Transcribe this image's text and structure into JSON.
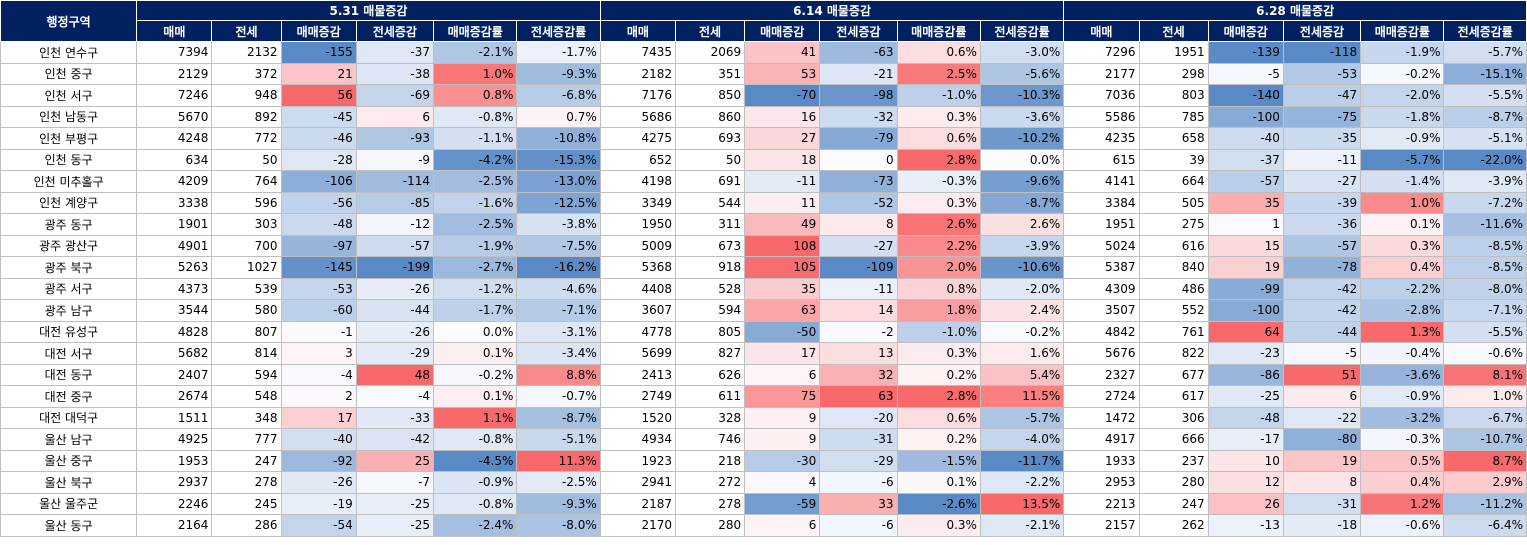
{
  "header": {
    "region_label": "행정구역",
    "groups": [
      "5.31 매물증감",
      "6.14 매물증감",
      "6.28 매물증감"
    ],
    "columns": [
      "매매",
      "전세",
      "매매증감",
      "전세증감",
      "매매증감률",
      "전세증감률"
    ]
  },
  "colors": {
    "header_bg": "#002060",
    "positive": "#f8696b",
    "negative": "#5a8ac6",
    "neutral": "#fcfcff"
  },
  "rows": [
    {
      "region": "인천 연수구",
      "g1": [
        "7394",
        "2132",
        "-155",
        "-37",
        "-2.1%",
        "-1.7%"
      ],
      "g2": [
        "7435",
        "2069",
        "41",
        "-63",
        "0.6%",
        "-3.0%"
      ],
      "g3": [
        "7296",
        "1951",
        "-139",
        "-118",
        "-1.9%",
        "-5.7%"
      ]
    },
    {
      "region": "인천 중구",
      "g1": [
        "2129",
        "372",
        "21",
        "-38",
        "1.0%",
        "-9.3%"
      ],
      "g2": [
        "2182",
        "351",
        "53",
        "-21",
        "2.5%",
        "-5.6%"
      ],
      "g3": [
        "2177",
        "298",
        "-5",
        "-53",
        "-0.2%",
        "-15.1%"
      ]
    },
    {
      "region": "인천 서구",
      "g1": [
        "7246",
        "948",
        "56",
        "-69",
        "0.8%",
        "-6.8%"
      ],
      "g2": [
        "7176",
        "850",
        "-70",
        "-98",
        "-1.0%",
        "-10.3%"
      ],
      "g3": [
        "7036",
        "803",
        "-140",
        "-47",
        "-2.0%",
        "-5.5%"
      ]
    },
    {
      "region": "인천 남동구",
      "g1": [
        "5670",
        "892",
        "-45",
        "6",
        "-0.8%",
        "0.7%"
      ],
      "g2": [
        "5686",
        "860",
        "16",
        "-32",
        "0.3%",
        "-3.6%"
      ],
      "g3": [
        "5586",
        "785",
        "-100",
        "-75",
        "-1.8%",
        "-8.7%"
      ]
    },
    {
      "region": "인천 부평구",
      "g1": [
        "4248",
        "772",
        "-46",
        "-93",
        "-1.1%",
        "-10.8%"
      ],
      "g2": [
        "4275",
        "693",
        "27",
        "-79",
        "0.6%",
        "-10.2%"
      ],
      "g3": [
        "4235",
        "658",
        "-40",
        "-35",
        "-0.9%",
        "-5.1%"
      ]
    },
    {
      "region": "인천 동구",
      "g1": [
        "634",
        "50",
        "-28",
        "-9",
        "-4.2%",
        "-15.3%"
      ],
      "g2": [
        "652",
        "50",
        "18",
        "0",
        "2.8%",
        "0.0%"
      ],
      "g3": [
        "615",
        "39",
        "-37",
        "-11",
        "-5.7%",
        "-22.0%"
      ]
    },
    {
      "region": "인천 미추홀구",
      "g1": [
        "4209",
        "764",
        "-106",
        "-114",
        "-2.5%",
        "-13.0%"
      ],
      "g2": [
        "4198",
        "691",
        "-11",
        "-73",
        "-0.3%",
        "-9.6%"
      ],
      "g3": [
        "4141",
        "664",
        "-57",
        "-27",
        "-1.4%",
        "-3.9%"
      ]
    },
    {
      "region": "인천 계양구",
      "g1": [
        "3338",
        "596",
        "-56",
        "-85",
        "-1.6%",
        "-12.5%"
      ],
      "g2": [
        "3349",
        "544",
        "11",
        "-52",
        "0.3%",
        "-8.7%"
      ],
      "g3": [
        "3384",
        "505",
        "35",
        "-39",
        "1.0%",
        "-7.2%"
      ]
    },
    {
      "region": "광주 동구",
      "g1": [
        "1901",
        "303",
        "-48",
        "-12",
        "-2.5%",
        "-3.8%"
      ],
      "g2": [
        "1950",
        "311",
        "49",
        "8",
        "2.6%",
        "2.6%"
      ],
      "g3": [
        "1951",
        "275",
        "1",
        "-36",
        "0.1%",
        "-11.6%"
      ]
    },
    {
      "region": "광주 광산구",
      "g1": [
        "4901",
        "700",
        "-97",
        "-57",
        "-1.9%",
        "-7.5%"
      ],
      "g2": [
        "5009",
        "673",
        "108",
        "-27",
        "2.2%",
        "-3.9%"
      ],
      "g3": [
        "5024",
        "616",
        "15",
        "-57",
        "0.3%",
        "-8.5%"
      ]
    },
    {
      "region": "광주 북구",
      "g1": [
        "5263",
        "1027",
        "-145",
        "-199",
        "-2.7%",
        "-16.2%"
      ],
      "g2": [
        "5368",
        "918",
        "105",
        "-109",
        "2.0%",
        "-10.6%"
      ],
      "g3": [
        "5387",
        "840",
        "19",
        "-78",
        "0.4%",
        "-8.5%"
      ]
    },
    {
      "region": "광주 서구",
      "g1": [
        "4373",
        "539",
        "-53",
        "-26",
        "-1.2%",
        "-4.6%"
      ],
      "g2": [
        "4408",
        "528",
        "35",
        "-11",
        "0.8%",
        "-2.0%"
      ],
      "g3": [
        "4309",
        "486",
        "-99",
        "-42",
        "-2.2%",
        "-8.0%"
      ]
    },
    {
      "region": "광주 남구",
      "g1": [
        "3544",
        "580",
        "-60",
        "-44",
        "-1.7%",
        "-7.1%"
      ],
      "g2": [
        "3607",
        "594",
        "63",
        "14",
        "1.8%",
        "2.4%"
      ],
      "g3": [
        "3507",
        "552",
        "-100",
        "-42",
        "-2.8%",
        "-7.1%"
      ]
    },
    {
      "region": "대전 유성구",
      "g1": [
        "4828",
        "807",
        "-1",
        "-26",
        "0.0%",
        "-3.1%"
      ],
      "g2": [
        "4778",
        "805",
        "-50",
        "-2",
        "-1.0%",
        "-0.2%"
      ],
      "g3": [
        "4842",
        "761",
        "64",
        "-44",
        "1.3%",
        "-5.5%"
      ]
    },
    {
      "region": "대전 서구",
      "g1": [
        "5682",
        "814",
        "3",
        "-29",
        "0.1%",
        "-3.4%"
      ],
      "g2": [
        "5699",
        "827",
        "17",
        "13",
        "0.3%",
        "1.6%"
      ],
      "g3": [
        "5676",
        "822",
        "-23",
        "-5",
        "-0.4%",
        "-0.6%"
      ]
    },
    {
      "region": "대전 동구",
      "g1": [
        "2407",
        "594",
        "-4",
        "48",
        "-0.2%",
        "8.8%"
      ],
      "g2": [
        "2413",
        "626",
        "6",
        "32",
        "0.2%",
        "5.4%"
      ],
      "g3": [
        "2327",
        "677",
        "-86",
        "51",
        "-3.6%",
        "8.1%"
      ]
    },
    {
      "region": "대전 중구",
      "g1": [
        "2674",
        "548",
        "2",
        "-4",
        "0.1%",
        "-0.7%"
      ],
      "g2": [
        "2749",
        "611",
        "75",
        "63",
        "2.8%",
        "11.5%"
      ],
      "g3": [
        "2724",
        "617",
        "-25",
        "6",
        "-0.9%",
        "1.0%"
      ]
    },
    {
      "region": "대전 대덕구",
      "g1": [
        "1511",
        "348",
        "17",
        "-33",
        "1.1%",
        "-8.7%"
      ],
      "g2": [
        "1520",
        "328",
        "9",
        "-20",
        "0.6%",
        "-5.7%"
      ],
      "g3": [
        "1472",
        "306",
        "-48",
        "-22",
        "-3.2%",
        "-6.7%"
      ]
    },
    {
      "region": "울산 남구",
      "g1": [
        "4925",
        "777",
        "-40",
        "-42",
        "-0.8%",
        "-5.1%"
      ],
      "g2": [
        "4934",
        "746",
        "9",
        "-31",
        "0.2%",
        "-4.0%"
      ],
      "g3": [
        "4917",
        "666",
        "-17",
        "-80",
        "-0.3%",
        "-10.7%"
      ]
    },
    {
      "region": "울산 중구",
      "g1": [
        "1953",
        "247",
        "-92",
        "25",
        "-4.5%",
        "11.3%"
      ],
      "g2": [
        "1923",
        "218",
        "-30",
        "-29",
        "-1.5%",
        "-11.7%"
      ],
      "g3": [
        "1933",
        "237",
        "10",
        "19",
        "0.5%",
        "8.7%"
      ]
    },
    {
      "region": "울산 북구",
      "g1": [
        "2937",
        "278",
        "-26",
        "-7",
        "-0.9%",
        "-2.5%"
      ],
      "g2": [
        "2941",
        "272",
        "4",
        "-6",
        "0.1%",
        "-2.2%"
      ],
      "g3": [
        "2953",
        "280",
        "12",
        "8",
        "0.4%",
        "2.9%"
      ]
    },
    {
      "region": "울산 울주군",
      "g1": [
        "2246",
        "245",
        "-19",
        "-25",
        "-0.8%",
        "-9.3%"
      ],
      "g2": [
        "2187",
        "278",
        "-59",
        "33",
        "-2.6%",
        "13.5%"
      ],
      "g3": [
        "2213",
        "247",
        "26",
        "-31",
        "1.2%",
        "-11.2%"
      ]
    },
    {
      "region": "울산 동구",
      "g1": [
        "2164",
        "286",
        "-54",
        "-25",
        "-2.4%",
        "-8.0%"
      ],
      "g2": [
        "2170",
        "280",
        "6",
        "-6",
        "0.3%",
        "-2.1%"
      ],
      "g3": [
        "2157",
        "262",
        "-13",
        "-18",
        "-0.6%",
        "-6.4%"
      ]
    }
  ]
}
